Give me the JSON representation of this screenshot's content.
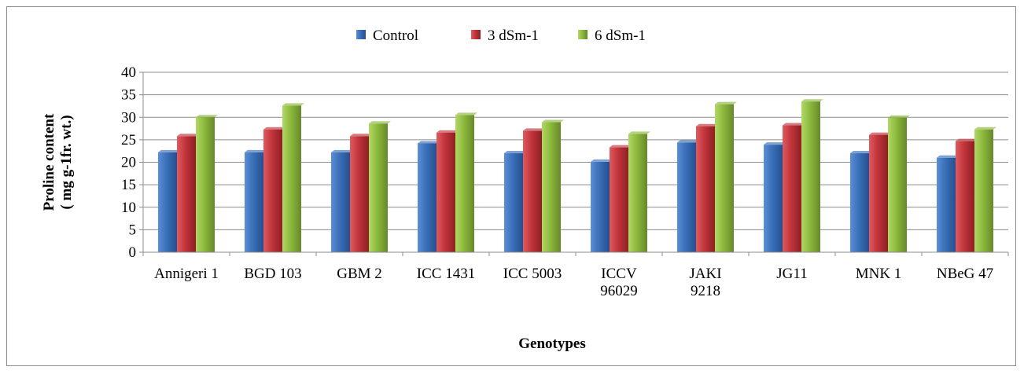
{
  "chart_data": {
    "type": "bar",
    "title": "",
    "xlabel": "Genotypes",
    "ylabel": [
      "Proline content",
      "( mg g-1fr. wt.)"
    ],
    "ylim": [
      0,
      40
    ],
    "yticks": [
      0,
      5,
      10,
      15,
      20,
      25,
      30,
      35,
      40
    ],
    "grid": true,
    "legend_position": "top",
    "categories": [
      [
        "Annigeri 1"
      ],
      [
        "BGD 103"
      ],
      [
        "GBM 2"
      ],
      [
        "ICC 1431"
      ],
      [
        "ICC 5003"
      ],
      [
        "ICCV",
        "96029"
      ],
      [
        "JAKI",
        "9218"
      ],
      [
        "JG11"
      ],
      [
        "MNK 1"
      ],
      [
        "NBeG 47"
      ]
    ],
    "series": [
      {
        "name": "Control",
        "color": "#3a6fb9",
        "values": [
          22.2,
          22.2,
          22.2,
          24.2,
          22.0,
          20.1,
          24.4,
          23.9,
          22.0,
          21.0
        ]
      },
      {
        "name": "3 dSm-1",
        "color": "#c0343a",
        "values": [
          25.8,
          27.3,
          25.8,
          26.6,
          27.0,
          23.3,
          28.0,
          28.2,
          26.1,
          24.7
        ]
      },
      {
        "name": "6 dSm-1",
        "color": "#8cb83c",
        "values": [
          30.0,
          32.6,
          28.6,
          30.5,
          28.9,
          26.3,
          32.9,
          33.5,
          29.9,
          27.3
        ]
      }
    ]
  }
}
